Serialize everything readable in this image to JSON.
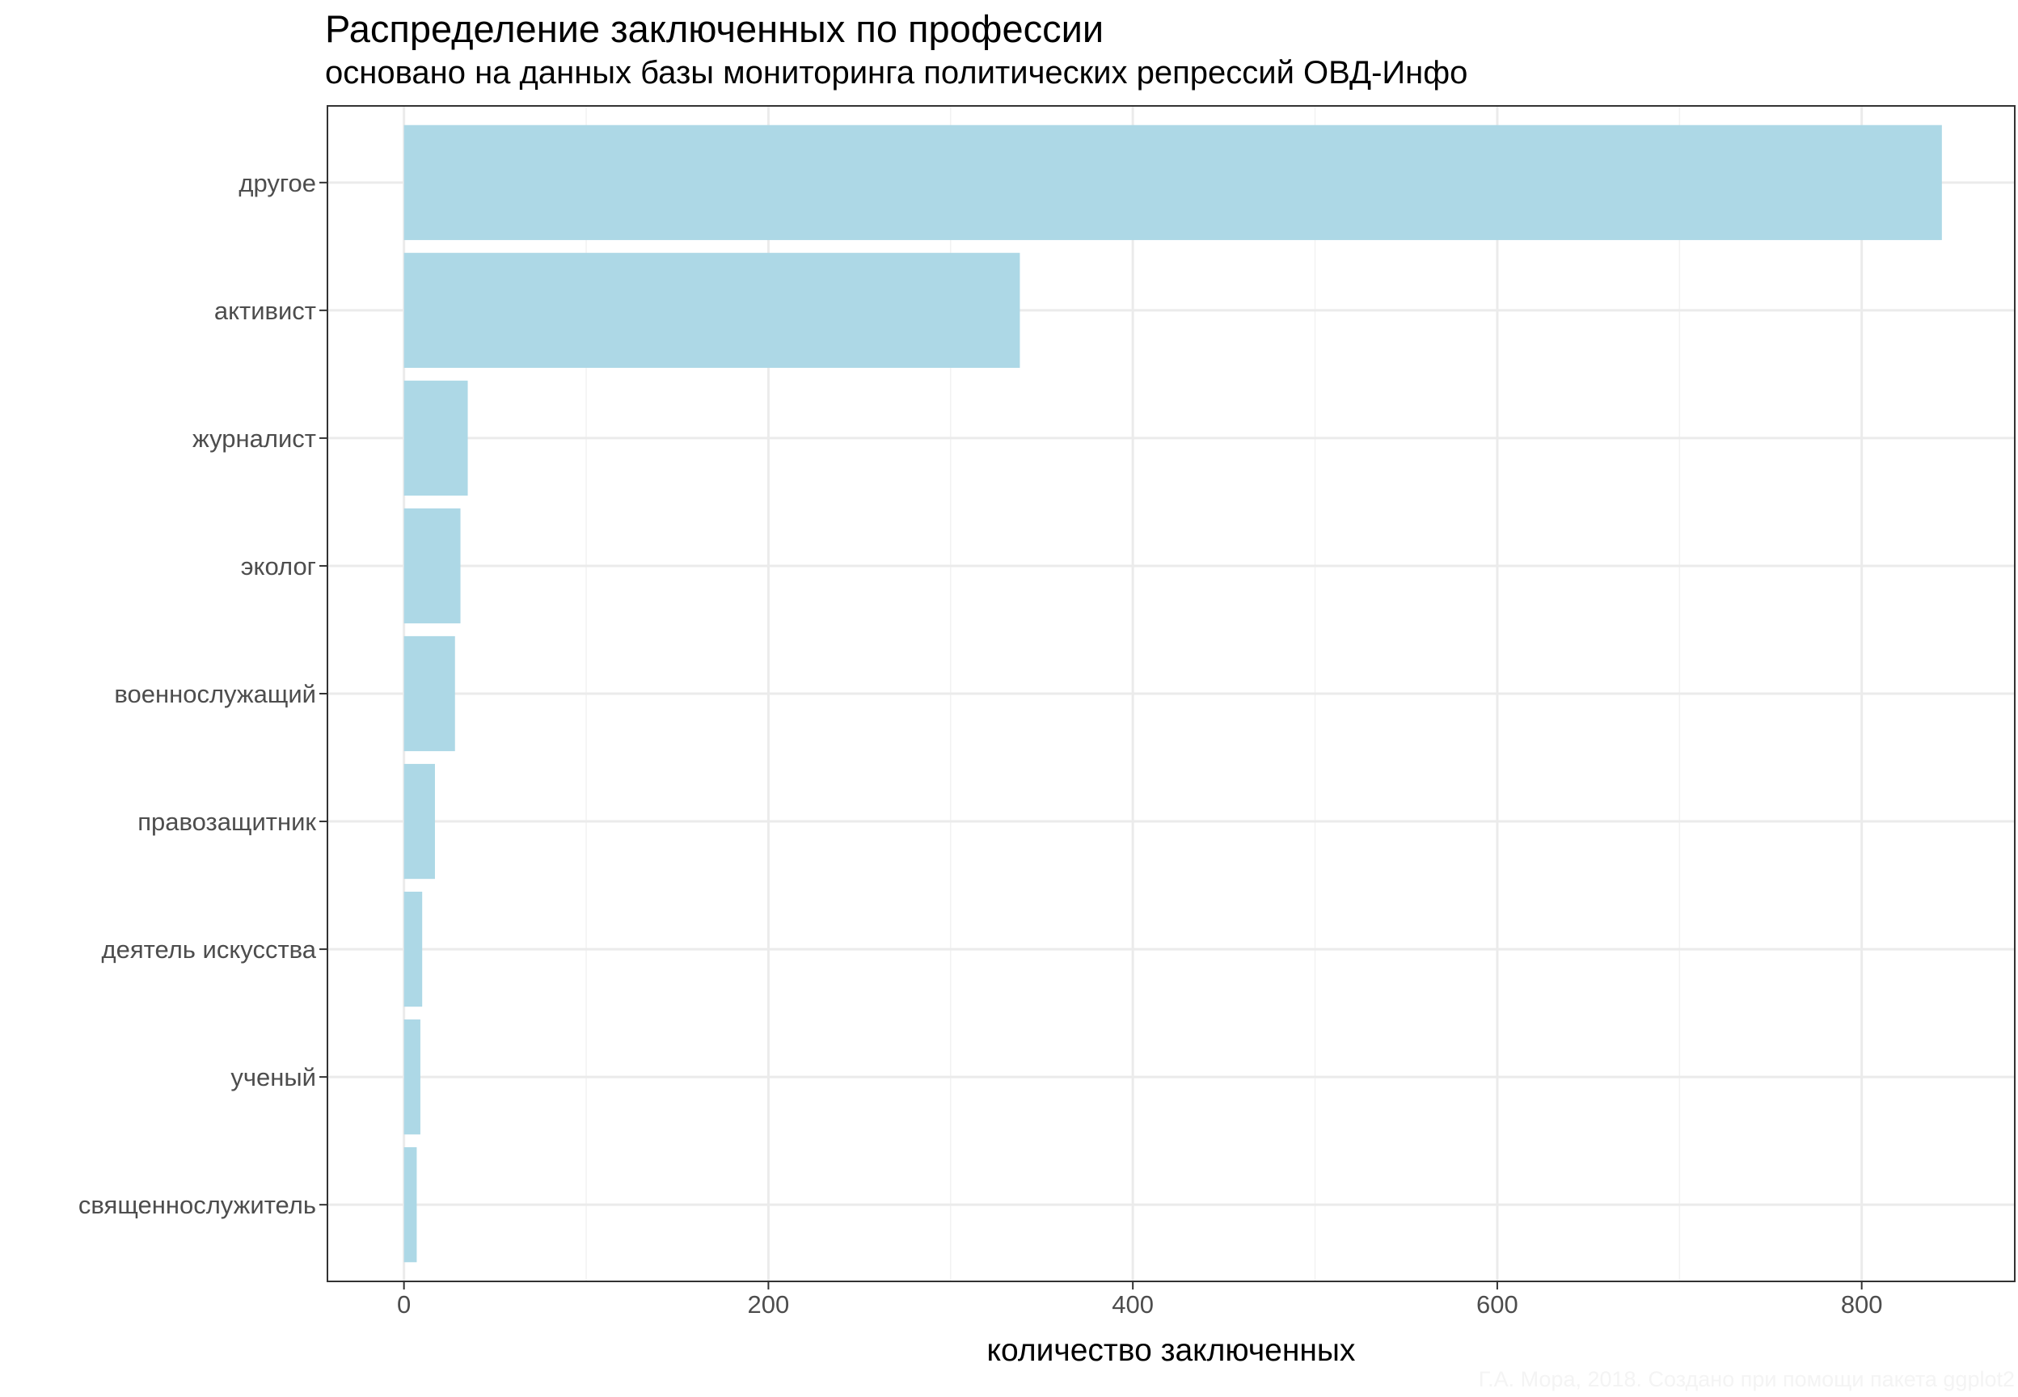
{
  "chart_data": {
    "type": "bar",
    "orientation": "horizontal",
    "title": "Распределение заключенных по профессии",
    "subtitle": "основано на данных базы мониторинга политических репрессий ОВД-Инфо",
    "xlabel": "количество заключенных",
    "ylabel": "",
    "categories": [
      "другое",
      "активист",
      "журналист",
      "эколог",
      "военнослужащий",
      "правозащитник",
      "деятель искусства",
      "ученый",
      "священнослужитель"
    ],
    "values": [
      844,
      338,
      35,
      31,
      28,
      17,
      10,
      9,
      7
    ],
    "xlim": [
      -42,
      884
    ],
    "x_ticks": [
      0,
      200,
      400,
      600,
      800
    ],
    "grid": true,
    "bar_color": "#add8e6",
    "caption": "Г.А. Мора, 2018. Создано при помощи пакета ggplot2"
  }
}
